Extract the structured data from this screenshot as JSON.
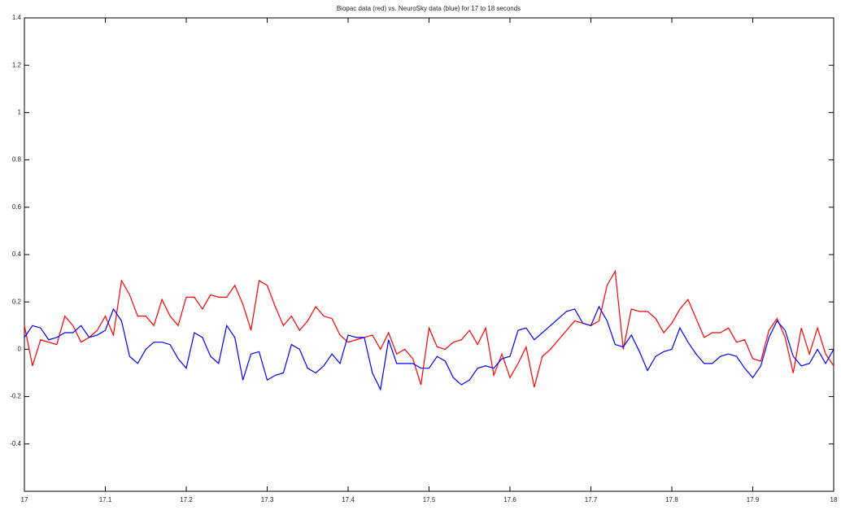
{
  "chart_data": {
    "type": "line",
    "title": "Biopac data (red) vs. NeuroSky data (blue) for 17 to 18 seconds",
    "x": [
      17.0,
      17.01,
      17.02,
      17.03,
      17.04,
      17.05,
      17.06,
      17.07,
      17.08,
      17.09,
      17.1,
      17.11,
      17.12,
      17.13,
      17.14,
      17.15,
      17.16,
      17.17,
      17.18,
      17.19,
      17.2,
      17.21,
      17.22,
      17.23,
      17.24,
      17.25,
      17.26,
      17.27,
      17.28,
      17.29,
      17.3,
      17.31,
      17.32,
      17.33,
      17.34,
      17.35,
      17.36,
      17.37,
      17.38,
      17.39,
      17.4,
      17.41,
      17.42,
      17.43,
      17.44,
      17.45,
      17.46,
      17.47,
      17.48,
      17.49,
      17.5,
      17.51,
      17.52,
      17.53,
      17.54,
      17.55,
      17.56,
      17.57,
      17.58,
      17.59,
      17.6,
      17.61,
      17.62,
      17.63,
      17.64,
      17.65,
      17.66,
      17.67,
      17.68,
      17.69,
      17.7,
      17.71,
      17.72,
      17.73,
      17.74,
      17.75,
      17.76,
      17.77,
      17.78,
      17.79,
      17.8,
      17.81,
      17.82,
      17.83,
      17.84,
      17.85,
      17.86,
      17.87,
      17.88,
      17.89,
      17.9,
      17.91,
      17.92,
      17.93,
      17.94,
      17.95,
      17.96,
      17.97,
      17.98,
      17.99,
      18.0
    ],
    "series": [
      {
        "color": "#ff0000",
        "values": [
          0.1,
          -0.07,
          0.04,
          0.03,
          0.02,
          0.14,
          0.1,
          0.03,
          0.05,
          0.08,
          0.14,
          0.06,
          0.29,
          0.23,
          0.14,
          0.14,
          0.1,
          0.21,
          0.14,
          0.1,
          0.22,
          0.22,
          0.17,
          0.23,
          0.22,
          0.22,
          0.27,
          0.19,
          0.08,
          0.29,
          0.27,
          0.18,
          0.1,
          0.14,
          0.08,
          0.12,
          0.18,
          0.14,
          0.13,
          0.06,
          0.03,
          0.04,
          0.05,
          0.06,
          0.0,
          0.07,
          -0.02,
          0.0,
          -0.04,
          -0.15,
          0.09,
          0.01,
          0.0,
          0.03,
          0.04,
          0.08,
          0.02,
          0.09,
          -0.11,
          -0.02,
          -0.12,
          -0.06,
          0.01,
          -0.16,
          -0.03,
          0.0,
          0.04,
          0.08,
          0.12,
          0.11,
          0.1,
          0.12,
          0.27,
          0.33,
          0.0,
          0.17,
          0.16,
          0.16,
          0.13,
          0.07,
          0.11,
          0.17,
          0.21,
          0.13,
          0.05,
          0.07,
          0.07,
          0.09,
          0.03,
          0.04,
          -0.04,
          -0.05,
          0.08,
          0.13,
          0.05,
          -0.1,
          0.09,
          -0.02,
          0.09,
          -0.02,
          -0.07
        ]
      },
      {
        "color": "#0000ff",
        "values": [
          0.05,
          0.1,
          0.09,
          0.04,
          0.05,
          0.07,
          0.07,
          0.1,
          0.05,
          0.06,
          0.08,
          0.17,
          0.12,
          -0.03,
          -0.06,
          0.0,
          0.03,
          0.03,
          0.02,
          -0.04,
          -0.08,
          0.07,
          0.05,
          -0.03,
          -0.06,
          0.1,
          0.05,
          -0.13,
          -0.02,
          -0.01,
          -0.13,
          -0.11,
          -0.1,
          0.02,
          0.0,
          -0.08,
          -0.1,
          -0.07,
          -0.02,
          -0.06,
          0.06,
          0.05,
          0.05,
          -0.1,
          -0.17,
          0.04,
          -0.06,
          -0.06,
          -0.06,
          -0.08,
          -0.08,
          -0.03,
          -0.05,
          -0.12,
          -0.15,
          -0.13,
          -0.08,
          -0.07,
          -0.08,
          -0.04,
          -0.03,
          0.08,
          0.09,
          0.04,
          0.07,
          0.1,
          0.13,
          0.16,
          0.17,
          0.11,
          0.1,
          0.18,
          0.12,
          0.02,
          0.01,
          0.06,
          -0.01,
          -0.09,
          -0.03,
          -0.01,
          0.0,
          0.09,
          0.03,
          -0.02,
          -0.06,
          -0.06,
          -0.03,
          -0.02,
          -0.03,
          -0.08,
          -0.12,
          -0.07,
          0.05,
          0.12,
          0.08,
          -0.03,
          -0.07,
          -0.06,
          0.0,
          -0.06,
          0.0
        ]
      }
    ],
    "xlim": [
      17,
      18
    ],
    "xticks": [
      17,
      17.1,
      17.2,
      17.3,
      17.4,
      17.5,
      17.6,
      17.7,
      17.8,
      17.9,
      18
    ],
    "ylim": [
      -0.6,
      1.4
    ],
    "yticks": [
      -0.4,
      -0.2,
      0,
      0.2,
      0.4,
      0.6,
      0.8,
      1,
      1.2,
      1.4
    ]
  }
}
